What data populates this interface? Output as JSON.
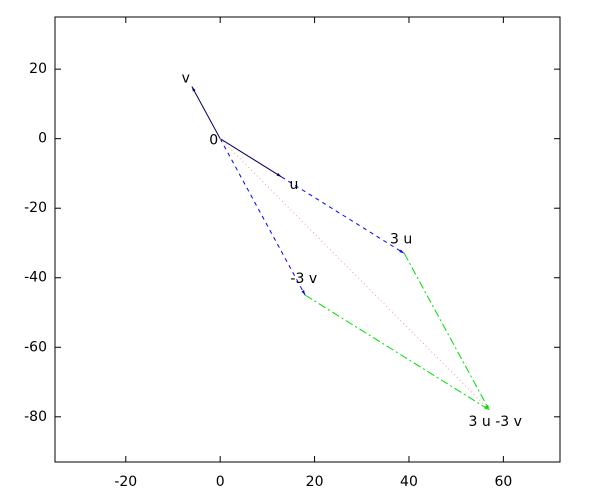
{
  "chart_data": {
    "type": "vector",
    "xlim": [
      -35,
      72
    ],
    "ylim": [
      -93,
      35
    ],
    "xticks": [
      -20,
      0,
      20,
      40,
      60
    ],
    "yticks": [
      20,
      0,
      -20,
      -40,
      -60,
      -80
    ],
    "grid": false,
    "segments": [
      {
        "color": "#000060",
        "style": "solid",
        "arrow": true,
        "x": [
          0,
          -6
        ],
        "y": [
          0,
          15
        ]
      },
      {
        "color": "#000060",
        "style": "solid",
        "arrow": true,
        "x": [
          0,
          13
        ],
        "y": [
          0,
          -11
        ]
      },
      {
        "color": "#0000ff",
        "style": "dashed",
        "arrow": true,
        "x": [
          13,
          39
        ],
        "y": [
          -11,
          -33
        ]
      },
      {
        "color": "#0000ff",
        "style": "dashed",
        "arrow": true,
        "x": [
          0,
          18
        ],
        "y": [
          0,
          -45
        ]
      },
      {
        "color": "#00dd00",
        "style": "dashdot",
        "arrow": true,
        "x": [
          39,
          57
        ],
        "y": [
          -33,
          -78
        ]
      },
      {
        "color": "#00dd00",
        "style": "dashdot",
        "arrow": true,
        "x": [
          18,
          57
        ],
        "y": [
          -45,
          -78
        ]
      },
      {
        "color": "#ff9999",
        "style": "dotted",
        "arrow": false,
        "x": [
          0,
          57
        ],
        "y": [
          0,
          -78
        ]
      }
    ],
    "points": [
      {
        "label": "0",
        "x": 0,
        "y": 0
      },
      {
        "label": "v",
        "x": -6,
        "y": 15
      },
      {
        "label": "u",
        "x": 13,
        "y": -11
      },
      {
        "label": "3 u",
        "x": 39,
        "y": -33
      },
      {
        "label": "-3 v",
        "x": 18,
        "y": -45
      },
      {
        "label": "3 u -3 v",
        "x": 57,
        "y": -78
      }
    ]
  }
}
